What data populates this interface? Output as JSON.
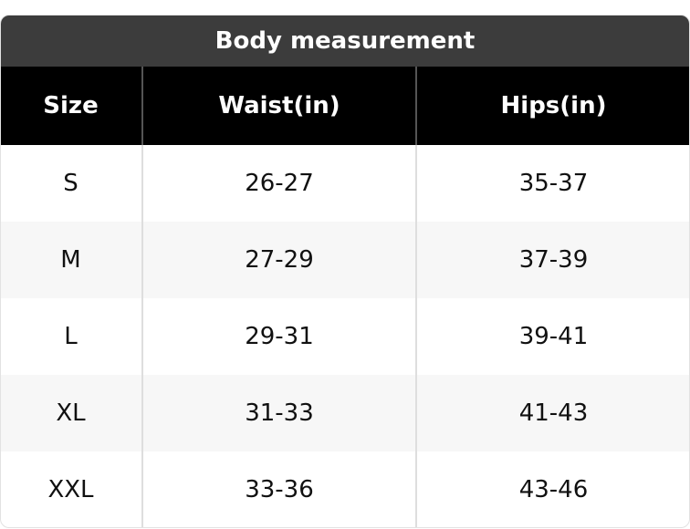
{
  "title": "Body measurement",
  "table": {
    "columns": [
      "Size",
      "Waist(in)",
      "Hips(in)"
    ],
    "rows": [
      [
        "S",
        "26-27",
        "35-37"
      ],
      [
        "M",
        "27-29",
        "37-39"
      ],
      [
        "L",
        "29-31",
        "39-41"
      ],
      [
        "XL",
        "31-33",
        "41-43"
      ],
      [
        "XXL",
        "33-36",
        "43-46"
      ]
    ]
  }
}
